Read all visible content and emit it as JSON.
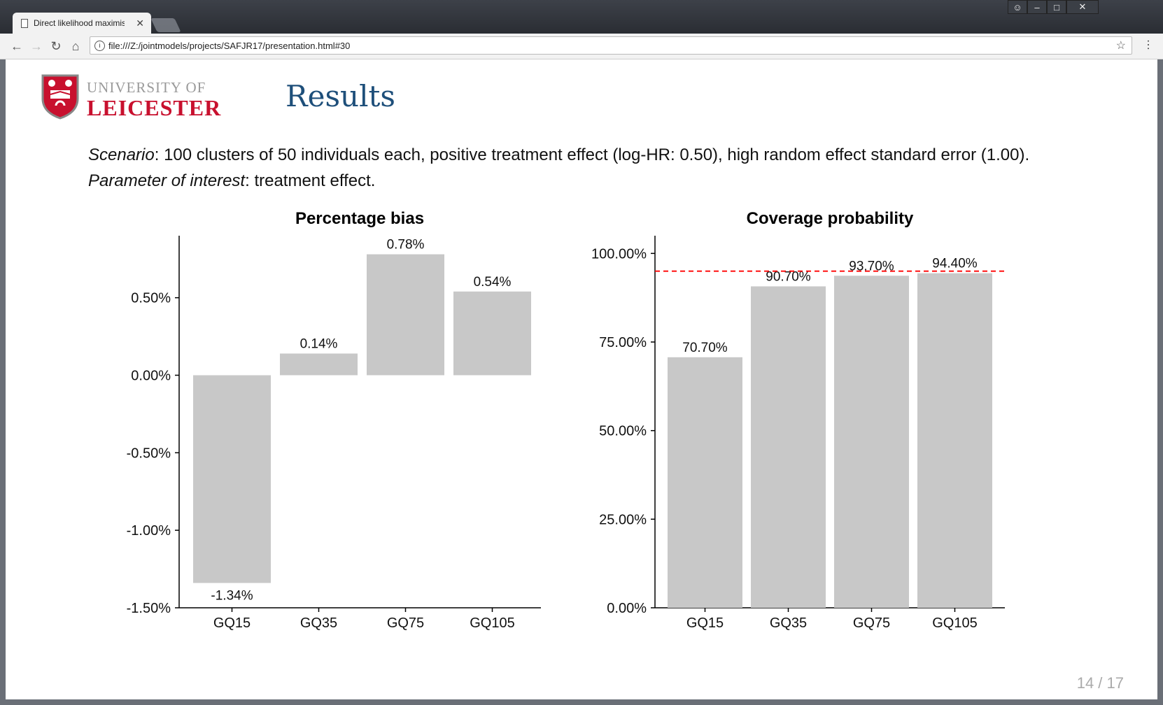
{
  "browser": {
    "tab_title": "Direct likelihood maximis",
    "tab_close": "✕",
    "url": "file:///Z:/jointmodels/projects/SAFJR17/presentation.html#30"
  },
  "slide": {
    "logo_line1": "UNIVERSITY OF",
    "logo_line2": "LEICESTER",
    "title": "Results",
    "description": {
      "scenario_label": "Scenario",
      "scenario_text": ": 100 clusters of 50 individuals each, positive treatment effect (log-HR: 0.50), high random effect standard error (1.00). ",
      "param_label": "Parameter of interest",
      "param_text": ": treatment effect."
    },
    "page_number": "14 / 17"
  },
  "colors": {
    "bar": "#c8c8c8",
    "reference_line": "#ff0000",
    "title_blue": "#1e4f7a",
    "logo_red": "#c8102e"
  },
  "chart_data": [
    {
      "type": "bar",
      "title": "Percentage bias",
      "xlabel": "",
      "ylabel": "",
      "categories": [
        "GQ15",
        "GQ35",
        "GQ75",
        "GQ105"
      ],
      "values": [
        -1.34,
        0.14,
        0.78,
        0.54
      ],
      "data_labels": [
        "-1.34%",
        "0.14%",
        "0.78%",
        "0.54%"
      ],
      "yticks": [
        -1.5,
        -1.0,
        -0.5,
        0.0,
        0.5
      ],
      "ytick_labels": [
        "-1.50%",
        "-1.00%",
        "-0.50%",
        "0.00%",
        "0.50%"
      ],
      "ylim": [
        -1.5,
        0.9
      ],
      "grid": false
    },
    {
      "type": "bar",
      "title": "Coverage probability",
      "xlabel": "",
      "ylabel": "",
      "categories": [
        "GQ15",
        "GQ35",
        "GQ75",
        "GQ105"
      ],
      "values": [
        70.7,
        90.7,
        93.7,
        94.4
      ],
      "data_labels": [
        "70.70%",
        "90.70%",
        "93.70%",
        "94.40%"
      ],
      "yticks": [
        0,
        25,
        50,
        75,
        100
      ],
      "ytick_labels": [
        "0.00%",
        "25.00%",
        "50.00%",
        "75.00%",
        "100.00%"
      ],
      "ylim": [
        0,
        105
      ],
      "reference_line": 95,
      "grid": false
    }
  ]
}
